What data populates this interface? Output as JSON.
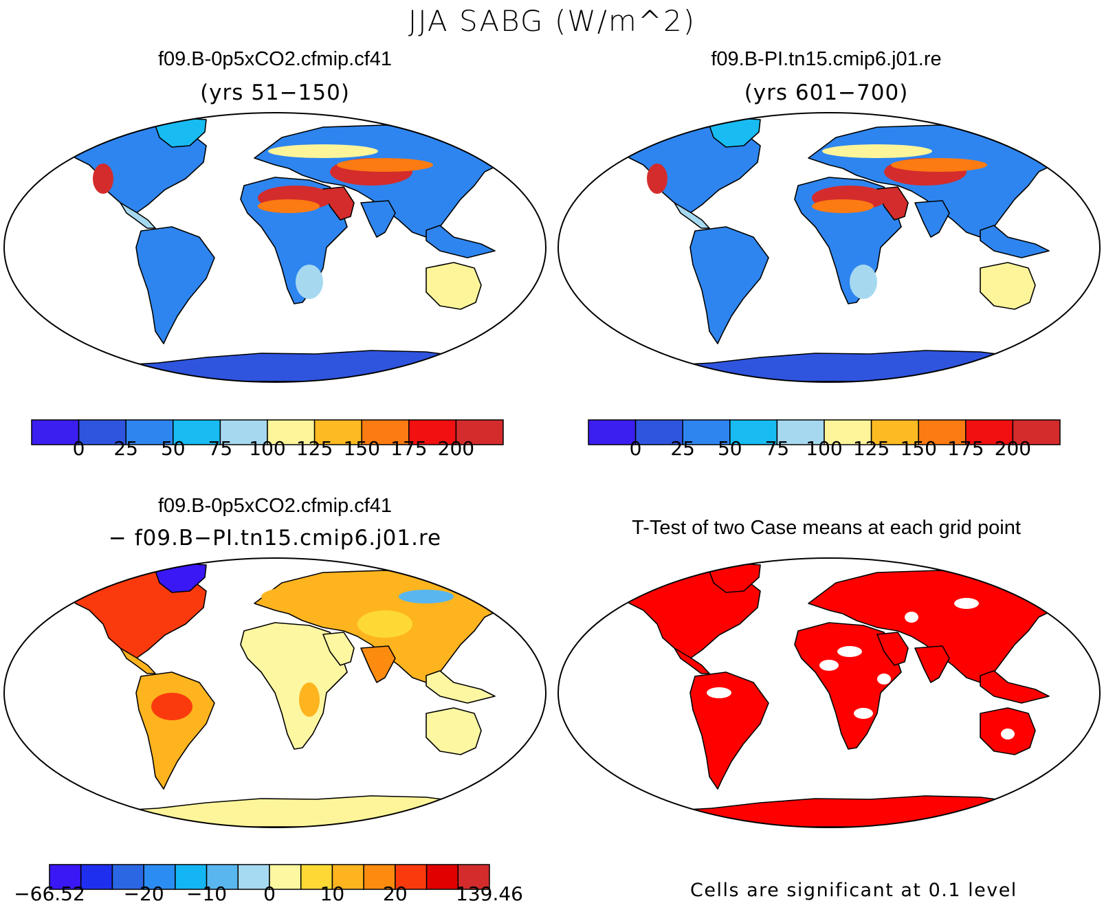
{
  "figure": {
    "title": "JJA SABG (W/m^2)"
  },
  "panels": [
    {
      "id": "p1",
      "title": "f09.B-0p5xCO2.cfmip.cf41",
      "subtitle": "(yrs 51−150)"
    },
    {
      "id": "p2",
      "title": "f09.B-PI.tn15.cmip6.j01.re",
      "subtitle": "(yrs 601−700)"
    },
    {
      "id": "p3",
      "title": "f09.B-0p5xCO2.cfmip.cf41",
      "subtitle": "− f09.B−PI.tn15.cmip6.j01.re"
    },
    {
      "id": "p4",
      "title": "T-Test of two Case means at each grid point",
      "subtitle": ""
    }
  ],
  "colorbars": {
    "absolute": {
      "colors": [
        "#3b1ef0",
        "#2f55df",
        "#2e85ef",
        "#18bcf2",
        "#a6d9f0",
        "#fef59a",
        "#feba22",
        "#fc7b12",
        "#f21010",
        "#d42c2c"
      ],
      "labels": [
        "0",
        "25",
        "50",
        "75",
        "100",
        "125",
        "150",
        "175",
        "200"
      ]
    },
    "difference": {
      "colors": [
        "#3a17f5",
        "#1f2ff0",
        "#2c67e3",
        "#2b8cf2",
        "#13b5f3",
        "#59b6ee",
        "#a6d9f2",
        "#fdf7a2",
        "#fed935",
        "#feb41f",
        "#fc8b10",
        "#fa3a0d",
        "#e00000",
        "#d42c2c"
      ],
      "labels": [
        "−66.52",
        "−20",
        "−10",
        "0",
        "10",
        "20",
        "139.46"
      ]
    }
  },
  "map_colors": {
    "ocean": "#ffffff",
    "antarctica_abs": "#2f55df",
    "antarctica_diff": "#fef59a",
    "significance": "#ff0000",
    "coast": "#000000"
  },
  "footnote": "Cells are significant at 0.1 level"
}
